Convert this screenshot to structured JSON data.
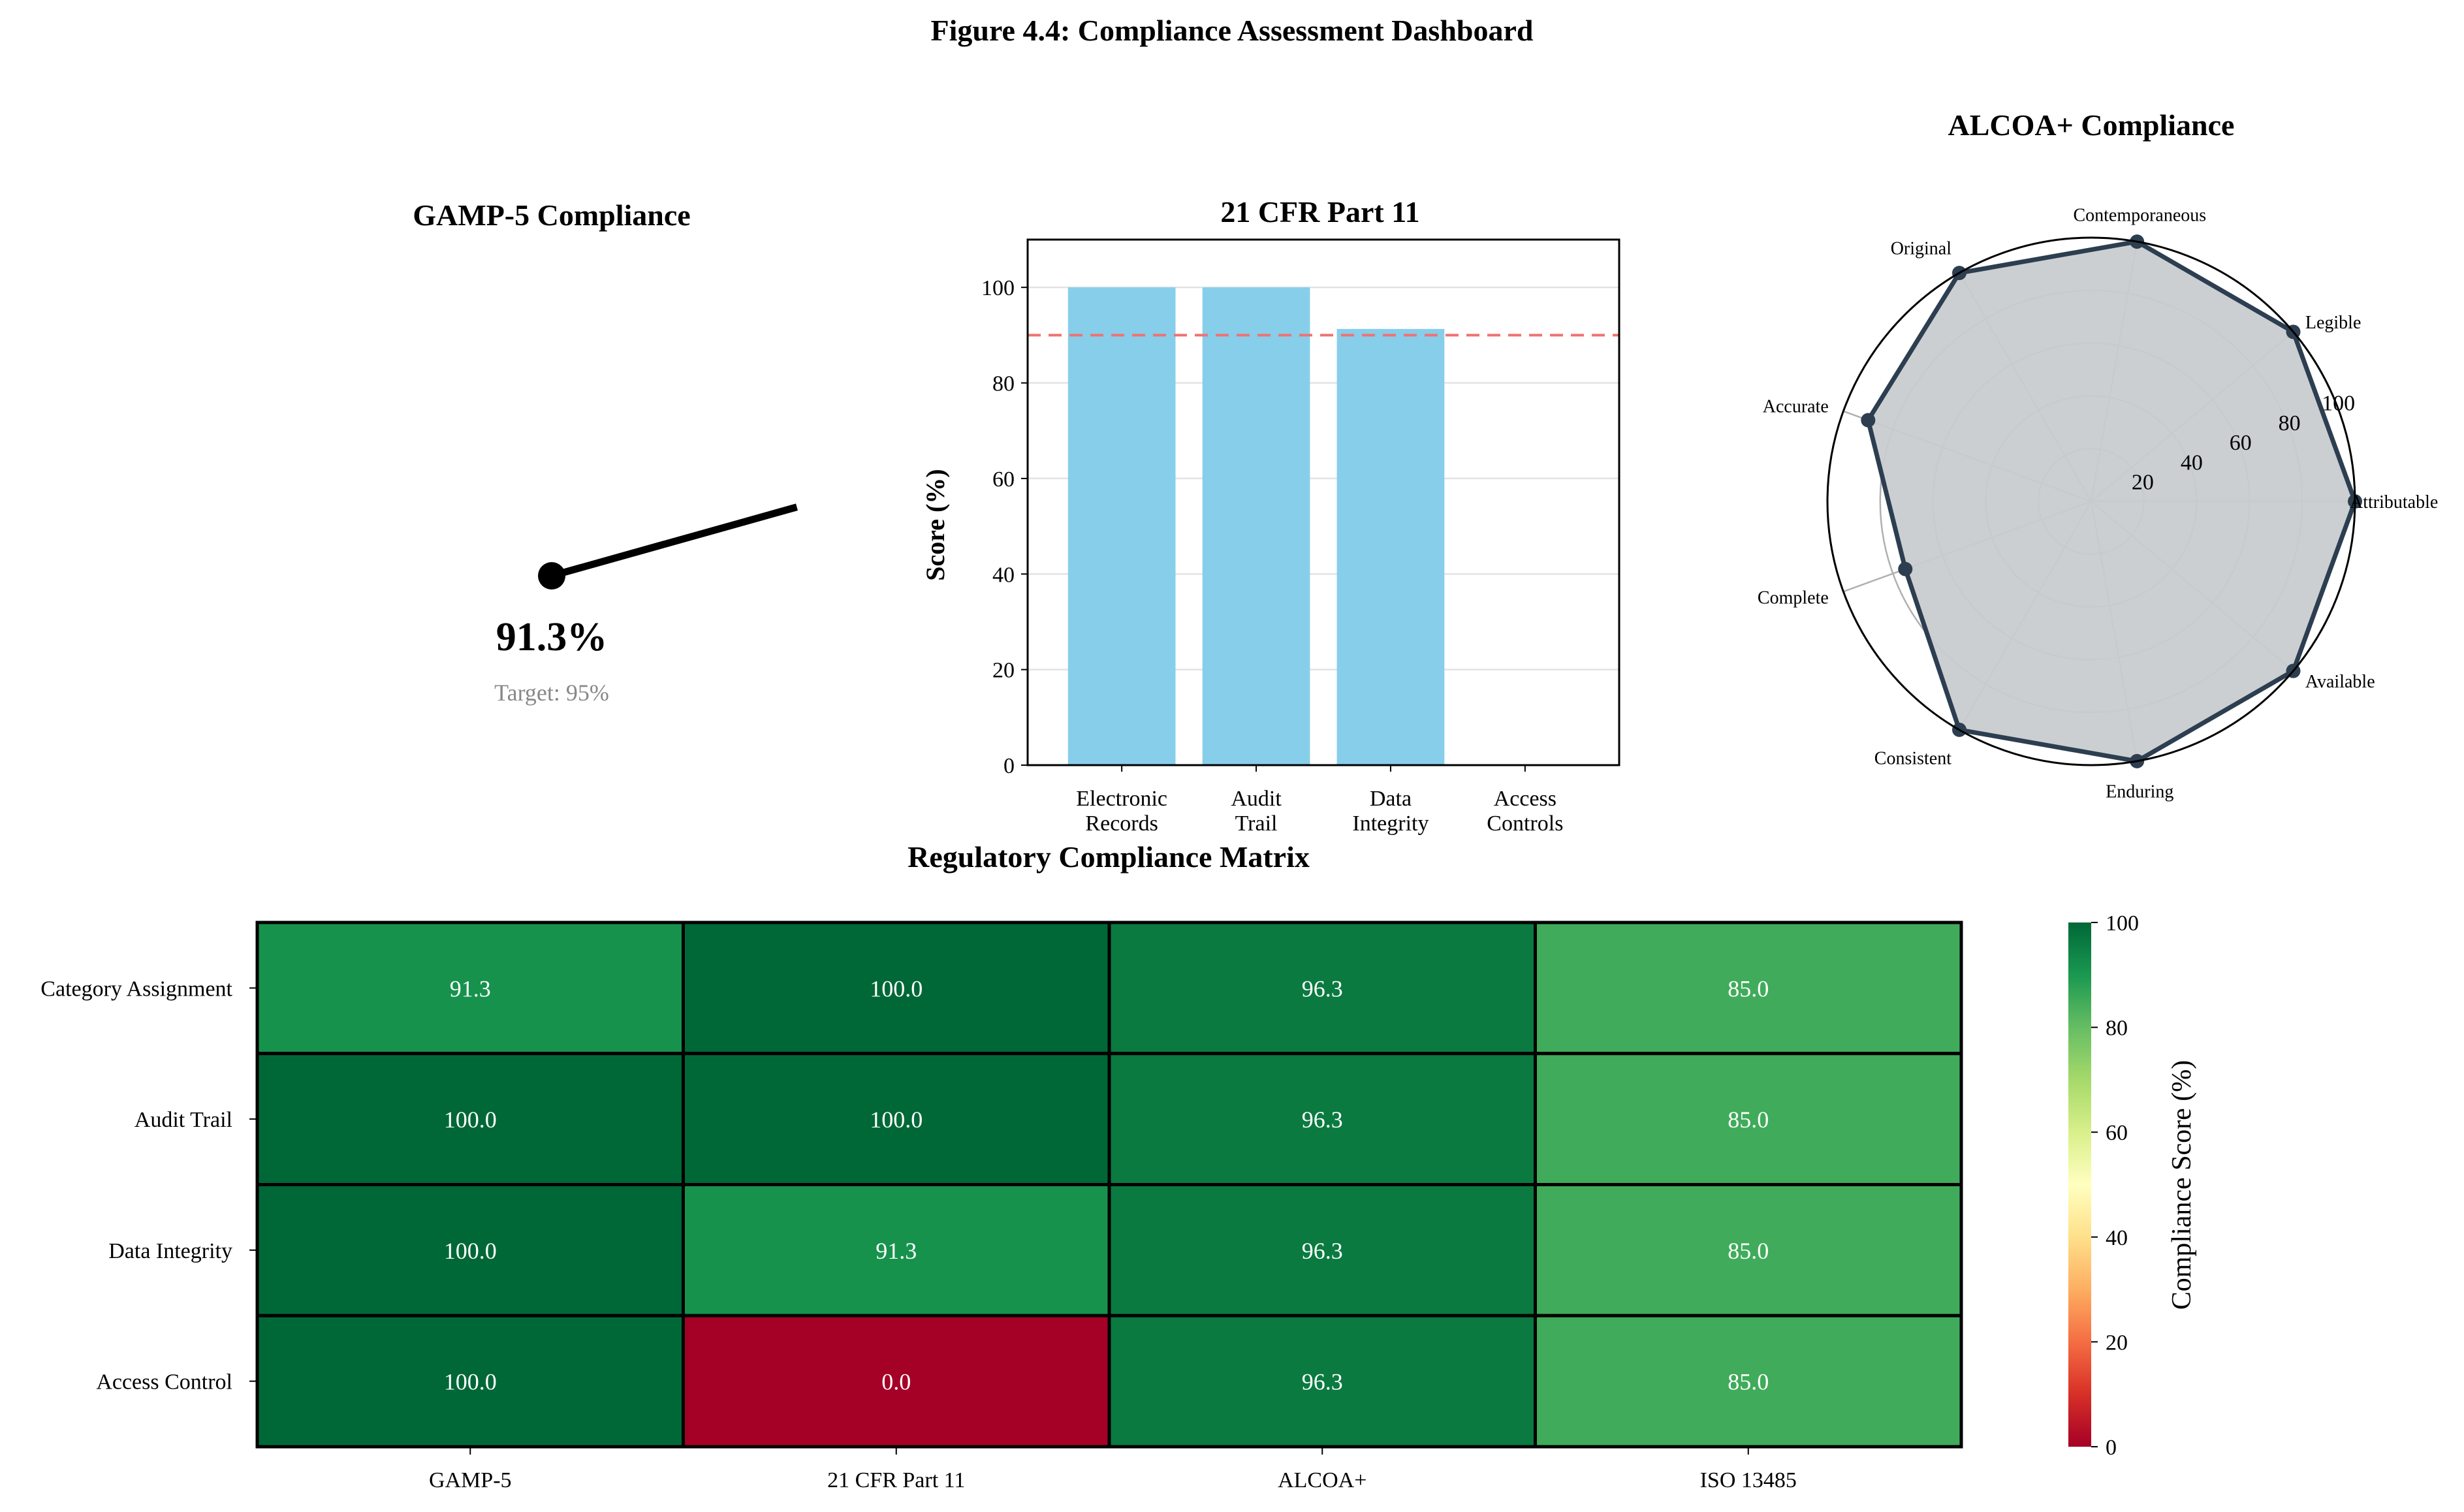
{
  "figure_title": "Figure 4.4: Compliance Assessment Dashboard",
  "chart_data": [
    {
      "type": "gauge",
      "title": "GAMP-5 Compliance",
      "value": 91.3,
      "value_label": "91.3%",
      "target": 95,
      "target_label": "Target: 95%",
      "range": [
        0,
        100
      ]
    },
    {
      "type": "bar",
      "title": "21 CFR Part 11",
      "categories": [
        "Electronic\nRecords",
        "Audit\nTrail",
        "Data\nIntegrity",
        "Access\nControls"
      ],
      "values": [
        100,
        100,
        91.3,
        0
      ],
      "ylabel": "Score (%)",
      "ylim": [
        0,
        110
      ],
      "yticks": [
        0,
        20,
        40,
        60,
        80,
        100
      ],
      "threshold": 90,
      "threshold_color": "#f07272",
      "bar_color": "#87ceeb",
      "grid": true
    },
    {
      "type": "radar",
      "title": "ALCOA+ Compliance",
      "categories": [
        "Attributable",
        "Legible",
        "Contemporaneous",
        "Original",
        "Accurate",
        "Complete",
        "Consistent",
        "Enduring",
        "Available"
      ],
      "values": [
        100,
        100,
        100,
        100,
        90,
        75,
        100,
        100,
        100
      ],
      "rlim": [
        0,
        100
      ],
      "rticks": [
        20,
        40,
        60,
        80,
        100
      ],
      "line_color": "#2c3e50",
      "fill_color": "#c8ccd0"
    },
    {
      "type": "heatmap",
      "title": "Regulatory Compliance Matrix",
      "rows": [
        "Category Assignment",
        "Audit Trail",
        "Data Integrity",
        "Access Control"
      ],
      "columns": [
        "GAMP-5",
        "21 CFR Part 11",
        "ALCOA+",
        "ISO 13485"
      ],
      "values": [
        [
          91.3,
          100.0,
          96.3,
          85.0
        ],
        [
          100.0,
          100.0,
          96.3,
          85.0
        ],
        [
          100.0,
          91.3,
          96.3,
          85.0
        ],
        [
          100.0,
          0.0,
          96.3,
          85.0
        ]
      ],
      "colormap": "RdYlGn",
      "vmin": 0,
      "vmax": 100,
      "colorbar_label": "Compliance Score (%)",
      "colorbar_ticks": [
        0,
        20,
        40,
        60,
        80,
        100
      ]
    }
  ]
}
